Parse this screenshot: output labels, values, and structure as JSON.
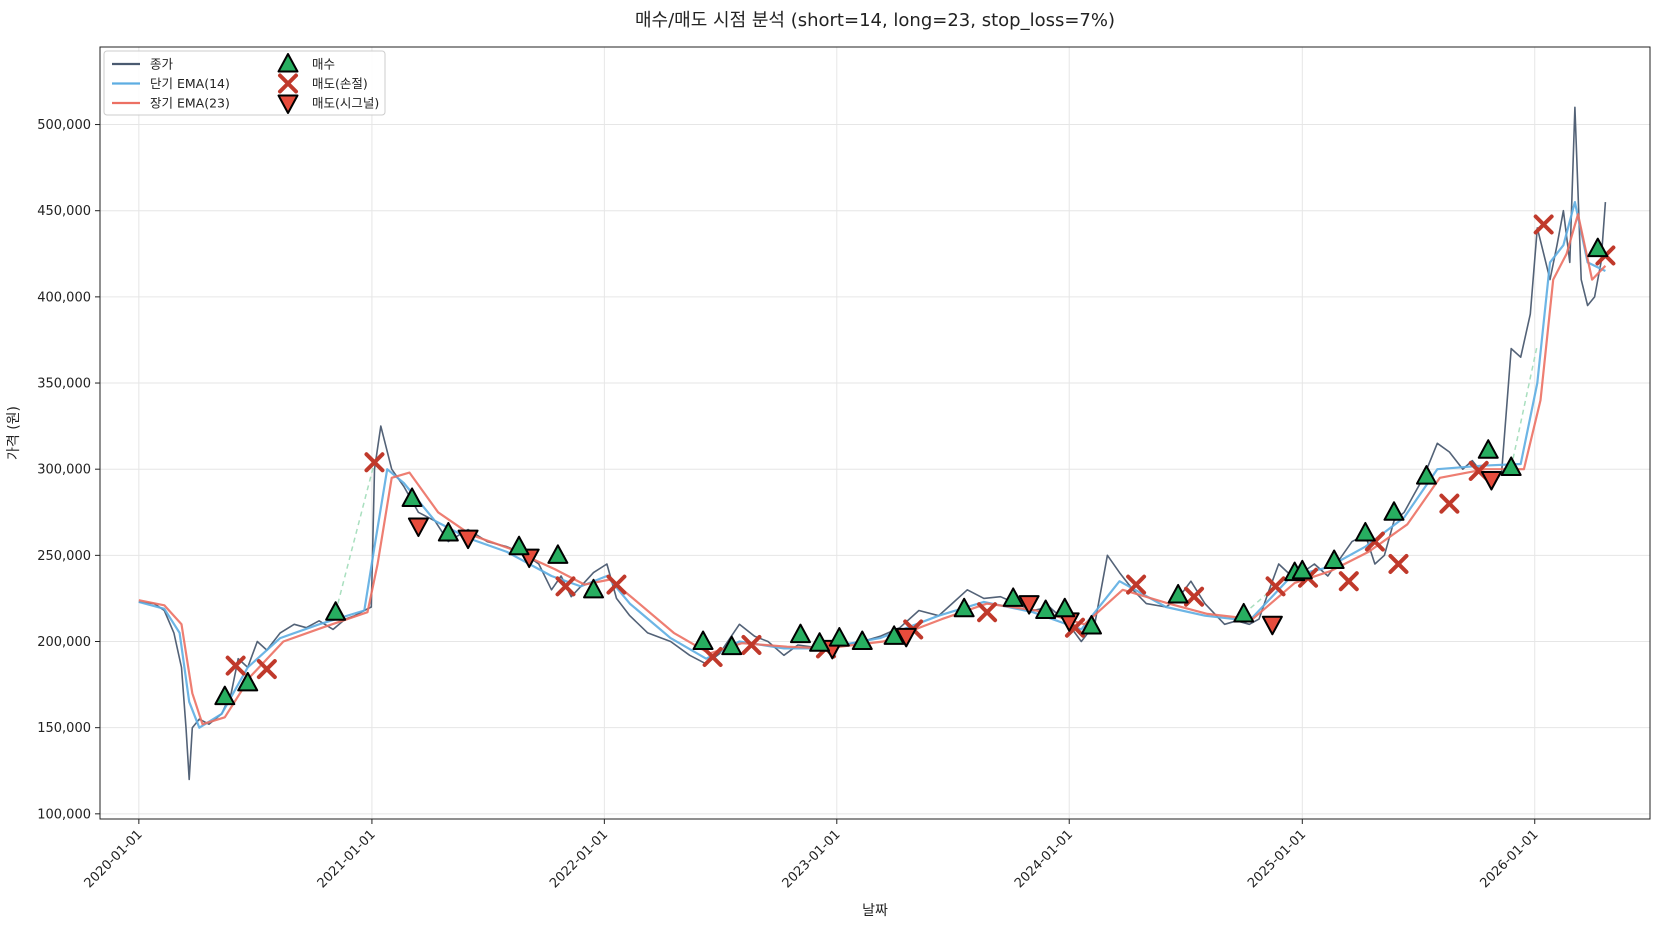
{
  "chart_data": {
    "type": "line",
    "title": "매수/매도 시점 분석 (short=14, long=23, stop_loss=7%)",
    "xlabel": "날짜",
    "ylabel": "가격 (원)",
    "xlim": [
      "2019-11-01",
      "2026-07-01"
    ],
    "ylim": [
      97000,
      545000
    ],
    "grid": true,
    "legend_position": "upper left",
    "x_ticks": [
      "2020-01-01",
      "2021-01-01",
      "2022-01-01",
      "2023-01-01",
      "2024-01-01",
      "2025-01-01",
      "2026-01-01"
    ],
    "y_ticks": [
      100000,
      150000,
      200000,
      250000,
      300000,
      350000,
      400000,
      450000,
      500000
    ],
    "y_tick_labels": [
      "100,000",
      "150,000",
      "200,000",
      "250,000",
      "300,000",
      "350,000",
      "400,000",
      "450,000",
      "500,000"
    ],
    "legend": [
      {
        "label": "종가",
        "kind": "line",
        "color": "#4a5a70"
      },
      {
        "label": "단기 EMA(14)",
        "kind": "line",
        "color": "#5dade2"
      },
      {
        "label": "장기 EMA(23)",
        "kind": "line",
        "color": "#ec7063"
      },
      {
        "label": "매수",
        "kind": "marker",
        "marker": "triangle-up",
        "color": "#27ae60"
      },
      {
        "label": "매도(손절)",
        "kind": "marker",
        "marker": "x",
        "color": "#c0392b"
      },
      {
        "label": "매도(시그널)",
        "kind": "marker",
        "marker": "triangle-down",
        "color": "#e74c3c"
      }
    ],
    "series": [
      {
        "name": "종가",
        "color": "#4a5a70",
        "x": [
          "2020-01-01",
          "2020-01-25",
          "2020-02-10",
          "2020-02-25",
          "2020-03-08",
          "2020-03-15",
          "2020-03-20",
          "2020-03-25",
          "2020-04-05",
          "2020-04-20",
          "2020-05-10",
          "2020-05-25",
          "2020-06-05",
          "2020-06-20",
          "2020-07-05",
          "2020-07-20",
          "2020-08-10",
          "2020-09-01",
          "2020-09-20",
          "2020-10-10",
          "2020-11-01",
          "2020-11-20",
          "2020-12-05",
          "2020-12-20",
          "2020-12-31",
          "2021-01-05",
          "2021-01-15",
          "2021-02-01",
          "2021-02-20",
          "2021-03-15",
          "2021-04-10",
          "2021-05-01",
          "2021-06-01",
          "2021-07-01",
          "2021-08-01",
          "2021-09-01",
          "2021-09-20",
          "2021-10-10",
          "2021-10-25",
          "2021-11-10",
          "2021-11-25",
          "2021-12-15",
          "2022-01-05",
          "2022-01-20",
          "2022-02-10",
          "2022-03-10",
          "2022-04-15",
          "2022-05-15",
          "2022-06-10",
          "2022-07-01",
          "2022-08-01",
          "2022-08-25",
          "2022-09-15",
          "2022-10-10",
          "2022-11-01",
          "2022-11-20",
          "2022-12-10",
          "2023-01-10",
          "2023-02-10",
          "2023-03-10",
          "2023-04-10",
          "2023-05-10",
          "2023-06-10",
          "2023-07-01",
          "2023-07-25",
          "2023-08-20",
          "2023-09-15",
          "2023-10-10",
          "2023-11-05",
          "2023-12-01",
          "2023-12-31",
          "2024-01-20",
          "2024-02-10",
          "2024-03-01",
          "2024-03-20",
          "2024-04-10",
          "2024-05-01",
          "2024-06-01",
          "2024-06-20",
          "2024-07-10",
          "2024-08-01",
          "2024-09-01",
          "2024-09-20",
          "2024-10-10",
          "2024-10-25",
          "2024-11-10",
          "2024-11-25",
          "2024-12-15",
          "2025-01-01",
          "2025-01-20",
          "2025-02-10",
          "2025-03-01",
          "2025-03-20",
          "2025-04-10",
          "2025-04-25",
          "2025-05-10",
          "2025-05-25",
          "2025-06-10",
          "2025-06-25",
          "2025-07-10",
          "2025-08-01",
          "2025-08-20",
          "2025-09-10",
          "2025-09-25",
          "2025-10-10",
          "2025-10-25",
          "2025-11-10",
          "2025-11-25",
          "2025-12-10",
          "2025-12-25",
          "2026-01-05",
          "2026-01-15",
          "2026-01-25",
          "2026-02-05",
          "2026-02-15",
          "2026-02-25",
          "2026-03-05",
          "2026-03-15",
          "2026-03-25",
          "2026-04-05",
          "2026-04-15",
          "2026-04-22"
        ],
        "values": [
          223000,
          222000,
          218000,
          205000,
          185000,
          150000,
          120000,
          150000,
          155000,
          152000,
          158000,
          170000,
          190000,
          185000,
          200000,
          195000,
          205000,
          210000,
          208000,
          212000,
          207000,
          213000,
          215000,
          218000,
          220000,
          300000,
          325000,
          300000,
          290000,
          275000,
          270000,
          258000,
          265000,
          258000,
          255000,
          250000,
          245000,
          230000,
          238000,
          226000,
          232000,
          240000,
          245000,
          225000,
          215000,
          205000,
          200000,
          192000,
          187000,
          193000,
          210000,
          203000,
          200000,
          192000,
          198000,
          197000,
          195000,
          198000,
          200000,
          203000,
          208000,
          218000,
          215000,
          222000,
          230000,
          225000,
          226000,
          222000,
          218000,
          220000,
          210000,
          200000,
          210000,
          250000,
          240000,
          230000,
          222000,
          220000,
          225000,
          235000,
          222000,
          210000,
          212000,
          210000,
          213000,
          230000,
          245000,
          238000,
          240000,
          245000,
          238000,
          248000,
          258000,
          262000,
          245000,
          250000,
          270000,
          275000,
          285000,
          295000,
          315000,
          310000,
          300000,
          305000,
          298000,
          290000,
          298000,
          370000,
          365000,
          390000,
          440000,
          425000,
          410000,
          430000,
          450000,
          420000,
          510000,
          410000,
          395000,
          400000,
          420000,
          455000
        ]
      },
      {
        "name": "단기 EMA(14)",
        "color": "#5dade2",
        "x": [
          "2020-01-01",
          "2020-02-10",
          "2020-03-05",
          "2020-03-20",
          "2020-04-05",
          "2020-05-10",
          "2020-06-20",
          "2020-08-10",
          "2020-10-10",
          "2020-12-20",
          "2021-01-05",
          "2021-01-25",
          "2021-02-20",
          "2021-04-10",
          "2021-06-01",
          "2021-08-01",
          "2021-10-10",
          "2021-11-25",
          "2022-01-05",
          "2022-02-10",
          "2022-04-15",
          "2022-06-10",
          "2022-08-01",
          "2022-10-10",
          "2022-12-10",
          "2023-03-10",
          "2023-06-10",
          "2023-08-20",
          "2023-11-05",
          "2024-01-20",
          "2024-03-20",
          "2024-06-01",
          "2024-08-01",
          "2024-10-10",
          "2024-12-15",
          "2025-02-10",
          "2025-04-10",
          "2025-06-10",
          "2025-08-01",
          "2025-10-10",
          "2025-12-10",
          "2026-01-05",
          "2026-01-25",
          "2026-02-15",
          "2026-03-05",
          "2026-03-25",
          "2026-04-22"
        ],
        "values": [
          223000,
          219000,
          205000,
          165000,
          150000,
          158000,
          185000,
          202000,
          210000,
          218000,
          255000,
          300000,
          292000,
          270000,
          260000,
          252000,
          238000,
          232000,
          238000,
          222000,
          202000,
          190000,
          200000,
          196000,
          196000,
          202000,
          215000,
          223000,
          217000,
          207000,
          235000,
          220000,
          215000,
          212000,
          238000,
          243000,
          255000,
          272000,
          300000,
          302000,
          303000,
          350000,
          420000,
          430000,
          455000,
          420000,
          415000
        ]
      },
      {
        "name": "장기 EMA(23)",
        "color": "#ec7063",
        "x": [
          "2020-01-01",
          "2020-02-10",
          "2020-03-08",
          "2020-03-25",
          "2020-04-10",
          "2020-05-15",
          "2020-06-25",
          "2020-08-15",
          "2020-10-15",
          "2020-12-25",
          "2021-01-10",
          "2021-02-01",
          "2021-03-01",
          "2021-04-15",
          "2021-06-05",
          "2021-08-05",
          "2021-10-15",
          "2021-12-01",
          "2022-01-10",
          "2022-02-15",
          "2022-04-20",
          "2022-06-15",
          "2022-08-05",
          "2022-10-15",
          "2022-12-15",
          "2023-03-15",
          "2023-06-15",
          "2023-08-25",
          "2023-11-10",
          "2024-01-25",
          "2024-03-25",
          "2024-06-05",
          "2024-08-05",
          "2024-10-15",
          "2024-12-20",
          "2025-02-15",
          "2025-04-15",
          "2025-06-15",
          "2025-08-05",
          "2025-10-15",
          "2025-12-15",
          "2026-01-10",
          "2026-01-30",
          "2026-02-20",
          "2026-03-10",
          "2026-04-01",
          "2026-04-22"
        ],
        "values": [
          224000,
          221000,
          210000,
          170000,
          152000,
          156000,
          180000,
          200000,
          208000,
          217000,
          245000,
          295000,
          298000,
          275000,
          262000,
          254000,
          242000,
          233000,
          236000,
          225000,
          205000,
          193000,
          199000,
          197000,
          196000,
          200000,
          213000,
          222000,
          218000,
          210000,
          230000,
          222000,
          216000,
          213000,
          234000,
          241000,
          252000,
          268000,
          295000,
          300000,
          300000,
          340000,
          410000,
          425000,
          448000,
          410000,
          418000
        ]
      }
    ],
    "buy_signals": {
      "x": [
        "2020-05-15",
        "2020-06-20",
        "2020-11-05",
        "2021-03-05",
        "2021-05-01",
        "2021-08-20",
        "2021-10-20",
        "2021-12-15",
        "2022-06-05",
        "2022-07-20",
        "2022-11-05",
        "2022-12-05",
        "2023-01-05",
        "2023-02-10",
        "2023-04-01",
        "2023-07-20",
        "2023-10-05",
        "2023-11-25",
        "2023-12-25",
        "2024-02-05",
        "2024-06-20",
        "2024-10-01",
        "2024-12-20",
        "2025-01-01",
        "2025-02-20",
        "2025-04-10",
        "2025-05-25",
        "2025-07-15",
        "2025-10-20",
        "2025-11-25",
        "2026-04-10"
      ],
      "values": [
        168000,
        176000,
        217000,
        283000,
        263000,
        255000,
        250000,
        230000,
        200000,
        197000,
        204000,
        199000,
        202000,
        200000,
        203000,
        219000,
        225000,
        218000,
        219000,
        209000,
        227000,
        216000,
        240000,
        241000,
        247000,
        263000,
        275000,
        296000,
        311000,
        301000,
        428000
      ]
    },
    "stop_loss_sells": {
      "x": [
        "2020-06-01",
        "2020-07-20",
        "2021-01-05",
        "2021-11-01",
        "2022-01-20",
        "2022-06-20",
        "2022-08-20",
        "2022-12-15",
        "2023-05-01",
        "2023-08-25",
        "2024-01-10",
        "2024-04-15",
        "2024-07-15",
        "2024-11-20",
        "2025-01-10",
        "2025-03-15",
        "2025-04-25",
        "2025-06-01",
        "2025-08-20",
        "2025-10-05",
        "2026-01-15",
        "2026-04-22"
      ],
      "values": [
        186000,
        184000,
        304000,
        232000,
        233000,
        191000,
        198000,
        196000,
        207000,
        217000,
        208000,
        233000,
        226000,
        232000,
        237000,
        235000,
        258000,
        245000,
        280000,
        299000,
        442000,
        424000
      ]
    },
    "signal_sells": {
      "x": [
        "2021-03-15",
        "2021-06-01",
        "2021-09-05",
        "2022-12-25",
        "2023-04-20",
        "2023-10-30",
        "2024-01-01",
        "2024-11-15",
        "2025-10-25"
      ],
      "values": [
        267000,
        260000,
        249000,
        196000,
        203000,
        222000,
        212000,
        210000,
        294000
      ]
    },
    "dashed_segments": [
      {
        "x": [
          "2020-11-05",
          "2021-01-05"
        ],
        "values": [
          217000,
          304000
        ]
      },
      {
        "x": [
          "2024-10-01",
          "2024-11-20"
        ],
        "values": [
          216000,
          232000
        ]
      },
      {
        "x": [
          "2025-11-25",
          "2026-01-05"
        ],
        "values": [
          301000,
          372000
        ]
      }
    ]
  }
}
